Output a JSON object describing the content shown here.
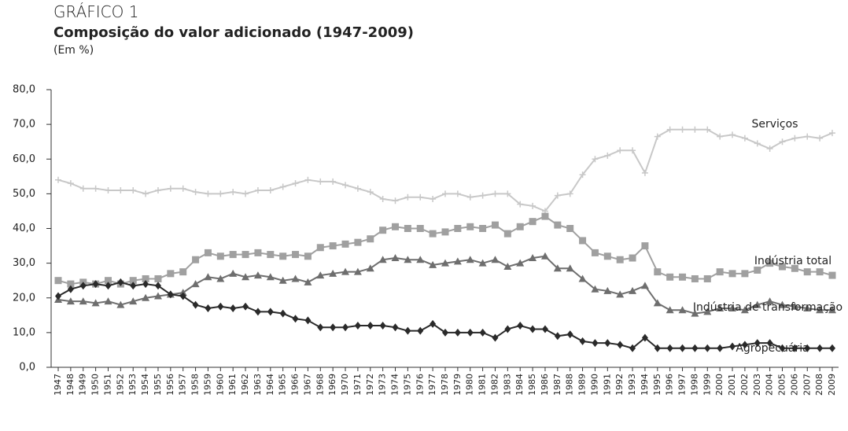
{
  "chart_data": {
    "type": "line",
    "title": "GRÁFICO 1",
    "subtitle": "Composição do valor adicionado (1947-2009)",
    "unit_note": "(Em %)",
    "categories": [
      "1947",
      "1948",
      "1949",
      "1950",
      "1951",
      "1952",
      "1953",
      "1954",
      "1955",
      "1956",
      "1957",
      "1958",
      "1959",
      "1960",
      "1961",
      "1962",
      "1963",
      "1964",
      "1965",
      "1966",
      "1967",
      "1968",
      "1969",
      "1970",
      "1971",
      "1972",
      "1973",
      "1974",
      "1975",
      "1976",
      "1977",
      "1978",
      "1979",
      "1980",
      "1981",
      "1982",
      "1983",
      "1984",
      "1985",
      "1986",
      "1987",
      "1988",
      "1989",
      "1990",
      "1991",
      "1992",
      "1993",
      "1994",
      "1995",
      "1996",
      "1997",
      "1998",
      "1999",
      "2000",
      "2001",
      "2002",
      "2003",
      "2004",
      "2005",
      "2006",
      "2007",
      "2008",
      "2009"
    ],
    "ylim": [
      0,
      80
    ],
    "yticks": [
      {
        "value": 0,
        "label": "0,0"
      },
      {
        "value": 10,
        "label": "10,0"
      },
      {
        "value": 20,
        "label": "20,0"
      },
      {
        "value": 30,
        "label": "30,0"
      },
      {
        "value": 40,
        "label": "40,0"
      },
      {
        "value": 50,
        "label": "50,0"
      },
      {
        "value": 60,
        "label": "60,0"
      },
      {
        "value": 70,
        "label": "70,0"
      },
      {
        "value": 80,
        "label": "80,0"
      }
    ],
    "grid": false,
    "series": [
      {
        "name": "Serviços",
        "color": "#c8c8c8",
        "marker": "plus",
        "values": [
          54,
          53,
          51.5,
          51.5,
          51,
          51,
          51,
          50,
          51,
          51.5,
          51.5,
          50.5,
          50,
          50,
          50.5,
          50,
          51,
          51,
          52,
          53,
          54,
          53.5,
          53.5,
          52.5,
          51.5,
          50.5,
          48.5,
          48,
          49,
          49,
          48.5,
          50,
          50,
          49,
          49.5,
          50,
          50,
          47,
          46.5,
          45,
          49.5,
          50,
          55.5,
          60,
          61,
          62.5,
          62.5,
          56,
          66.5,
          68.5,
          68.5,
          68.5,
          68.5,
          66.5,
          67,
          66,
          64.5,
          63,
          65,
          66,
          66.5,
          66,
          67.5
        ]
      },
      {
        "name": "Indústria total",
        "color": "#a0a0a0",
        "marker": "square",
        "values": [
          25,
          24,
          24.5,
          24,
          25,
          24,
          25,
          25.5,
          25.5,
          27,
          27.5,
          31,
          33,
          32,
          32.5,
          32.5,
          33,
          32.5,
          32,
          32.5,
          32,
          34.5,
          35,
          35.5,
          36,
          37,
          39.5,
          40.5,
          40,
          40,
          38.5,
          39,
          40,
          40.5,
          40,
          41,
          38.5,
          40.5,
          42,
          43.5,
          41,
          40,
          36.5,
          33,
          32,
          31,
          31.5,
          35,
          27.5,
          26,
          26,
          25.5,
          25.5,
          27.5,
          27,
          27,
          28,
          30,
          29,
          28.5,
          27.5,
          27.5,
          26.5
        ]
      },
      {
        "name": "Indústria de transformação",
        "color": "#6e6e6e",
        "marker": "triangle",
        "values": [
          19.5,
          19,
          19,
          18.5,
          19,
          18,
          19,
          20,
          20.5,
          21,
          21.5,
          24,
          26,
          25.5,
          27,
          26,
          26.5,
          26,
          25,
          25.5,
          24.5,
          26.5,
          27,
          27.5,
          27.5,
          28.5,
          31,
          31.5,
          31,
          31,
          29.5,
          30,
          30.5,
          31,
          30,
          31,
          29,
          30,
          31.5,
          32,
          28.5,
          28.5,
          25.5,
          22.5,
          22,
          21,
          22,
          23.5,
          18.5,
          16.5,
          16.5,
          15.5,
          16,
          17,
          17,
          16.5,
          18,
          19,
          18,
          17.5,
          17,
          16.5,
          16.5
        ]
      },
      {
        "name": "Agropecuária",
        "color": "#2a2a2a",
        "marker": "diamond",
        "values": [
          20.5,
          22.5,
          23.5,
          24,
          23.5,
          24.5,
          23.5,
          24,
          23.5,
          21,
          20.5,
          18,
          17,
          17.5,
          17,
          17.5,
          16,
          16,
          15.5,
          14,
          13.5,
          11.5,
          11.5,
          11.5,
          12,
          12,
          12,
          11.5,
          10.5,
          10.5,
          12.5,
          10,
          10,
          10,
          10,
          8.5,
          11,
          12,
          11,
          11,
          9,
          9.5,
          7.5,
          7,
          7,
          6.5,
          5.5,
          8.5,
          5.5,
          5.5,
          5.5,
          5.5,
          5.5,
          5.5,
          6,
          6.5,
          7,
          7,
          5.5,
          5.5,
          5.5,
          5.5,
          5.5
        ]
      }
    ]
  }
}
